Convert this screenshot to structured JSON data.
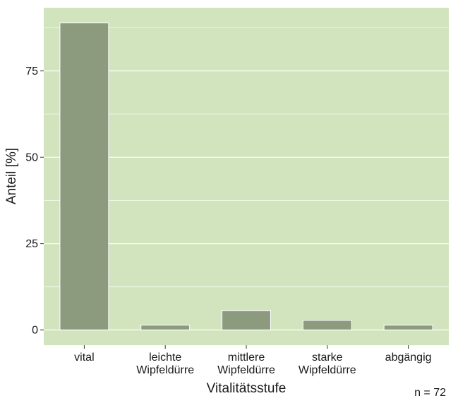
{
  "chart_data": {
    "type": "bar",
    "categories": [
      "vital",
      "leichte Wipfeldürre",
      "mittlere Wipfeldürre",
      "starke Wipfeldürre",
      "abgängig"
    ],
    "category_lines": [
      [
        "vital"
      ],
      [
        "leichte",
        "Wipfeldürre"
      ],
      [
        "mittlere",
        "Wipfeldürre"
      ],
      [
        "starke",
        "Wipfeldürre"
      ],
      [
        "abgängig"
      ]
    ],
    "values": [
      88.9,
      1.4,
      5.6,
      2.8,
      1.4
    ],
    "xlabel": "Vitalitätsstufe",
    "ylabel": "Anteil [%]",
    "ylim": [
      -4.45,
      93.3
    ],
    "yticks": [
      0,
      25,
      50,
      75
    ],
    "ytick_labels": [
      "0",
      "25",
      "50",
      "75"
    ],
    "grid": true,
    "note": "n = 72",
    "colors": {
      "panel_background": "#d2e4bd",
      "gridline": "#ffffff",
      "bar_fill": "#8c9a7e",
      "bar_outline": "#ffffff",
      "text": "#1a1a1a"
    }
  }
}
